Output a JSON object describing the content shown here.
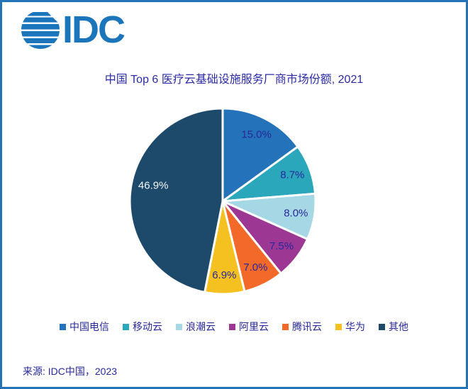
{
  "frame": {
    "border_color": "#2273B8",
    "background": "#ffffff"
  },
  "logo": {
    "text": "IDC",
    "color": "#1B75BB"
  },
  "title": "中国 Top 6 医疗云基础设施服务厂商市场份额, 2021",
  "chart_data": {
    "type": "pie",
    "title": "中国 Top 6 医疗云基础设施服务厂商市场份额, 2021",
    "unit": "percent",
    "start_angle_deg": 0,
    "direction": "clockwise",
    "legend_position": "bottom",
    "slices": [
      {
        "label": "中国电信",
        "value": 15.0,
        "display": "15.0%",
        "color": "#2473BA",
        "label_color": "#28289B"
      },
      {
        "label": "移动云",
        "value": 8.7,
        "display": "8.7%",
        "color": "#2BA7BC",
        "label_color": "#28289B"
      },
      {
        "label": "浪潮云",
        "value": 8.0,
        "display": "8.0%",
        "color": "#A5D8E4",
        "label_color": "#28289B"
      },
      {
        "label": "阿里云",
        "value": 7.5,
        "display": "7.5%",
        "color": "#9C3894",
        "label_color": "#28289B"
      },
      {
        "label": "腾讯云",
        "value": 7.0,
        "display": "7.0%",
        "color": "#F2692A",
        "label_color": "#28289B"
      },
      {
        "label": "华为",
        "value": 6.9,
        "display": "6.9%",
        "color": "#F4C120",
        "label_color": "#28289B"
      },
      {
        "label": "其他",
        "value": 46.9,
        "display": "46.9%",
        "color": "#1D4A6B",
        "label_color": "#F2F7FA"
      }
    ]
  },
  "footer": {
    "source": "来源: IDC中国，2023"
  }
}
